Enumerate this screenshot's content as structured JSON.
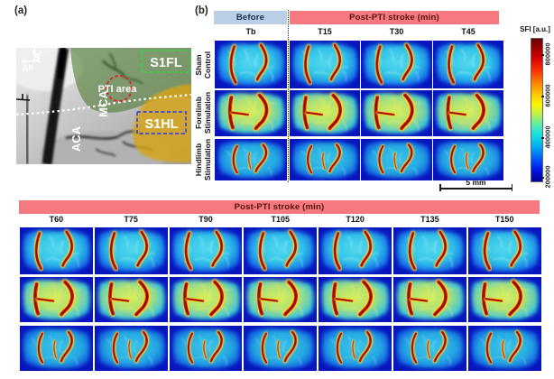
{
  "figure": {
    "panel_a_label": "(a)",
    "panel_b_label": "(b)"
  },
  "panel_a": {
    "compass": {
      "ap": "AP",
      "ml": "ML"
    },
    "vessel_labels": {
      "mca": "MCA",
      "aca": "ACA"
    },
    "pti_label": "PTI area",
    "regions": {
      "s1fl": "S1FL",
      "s1hl": "S1HL"
    }
  },
  "panel_b": {
    "before_label": "Before",
    "post_label": "Post-PTI stroke (min)",
    "top_columns": [
      "Tb",
      "T15",
      "T30",
      "T45"
    ],
    "rows": [
      {
        "label_line1": "Sham",
        "label_line2": "Control",
        "variant": "sham"
      },
      {
        "label_line1": "Forelimb",
        "label_line2": "Stimulation",
        "variant": "fore"
      },
      {
        "label_line1": "Hindlimb",
        "label_line2": "Stimulation",
        "variant": "hind"
      }
    ],
    "colorbar": {
      "label": "SFI [a.u.]",
      "ticks": [
        "800000",
        "600000",
        "400000",
        "200000"
      ]
    },
    "scalebar_label": "5 mm"
  },
  "bottom": {
    "header": "Post-PTI stroke (min)",
    "columns": [
      "T60",
      "T75",
      "T90",
      "T105",
      "T120",
      "T135",
      "T150"
    ]
  },
  "colors": {
    "before_bar": "#b9cfe5",
    "post_bar": "#f5797e",
    "heatmap_low": "#0000a0",
    "heatmap_high": "#650000"
  }
}
